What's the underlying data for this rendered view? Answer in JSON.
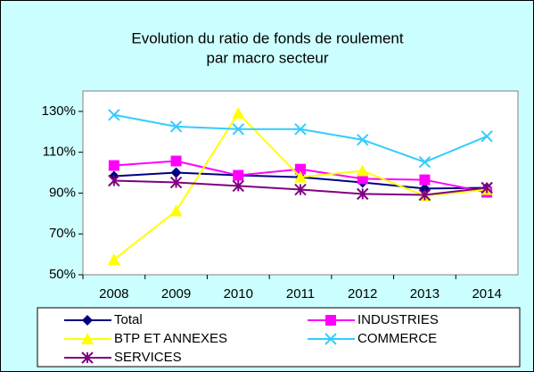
{
  "chart_data": {
    "type": "line",
    "title": [
      "Evolution du ratio de fonds de roulement",
      "par macro secteur"
    ],
    "categories": [
      "2008",
      "2009",
      "2010",
      "2011",
      "2012",
      "2013",
      "2014"
    ],
    "series": [
      {
        "name": "Total",
        "color": "#000080",
        "marker": "diamond",
        "values": [
          98.3,
          100,
          98.7,
          97.8,
          95.2,
          92.2,
          92.6
        ]
      },
      {
        "name": "INDUSTRIES",
        "color": "#ff00ff",
        "marker": "square",
        "values": [
          103.5,
          105.7,
          98.7,
          101.7,
          97,
          96.5,
          90.4
        ]
      },
      {
        "name": "BTP ET ANNEXES",
        "color": "#ffff00",
        "marker": "triangle",
        "values": [
          57.4,
          81.3,
          129.1,
          97.8,
          100.9,
          88.7,
          91.7
        ]
      },
      {
        "name": "COMMERCE",
        "color": "#33ccff",
        "marker": "x",
        "values": [
          128.3,
          122.6,
          121.3,
          121.3,
          116.1,
          105.2,
          117.8
        ]
      },
      {
        "name": "SERVICES",
        "color": "#800080",
        "marker": "star",
        "values": [
          96.1,
          95.2,
          93.5,
          91.7,
          89.6,
          89.1,
          92.6
        ]
      }
    ],
    "ylim": [
      50,
      140
    ],
    "yticks": [
      {
        "value": 50,
        "label": "50%"
      },
      {
        "value": 70,
        "label": "70%"
      },
      {
        "value": 90,
        "label": "90%"
      },
      {
        "value": 110,
        "label": "110%"
      },
      {
        "value": 130,
        "label": "130%"
      }
    ],
    "legend": "bottom"
  }
}
